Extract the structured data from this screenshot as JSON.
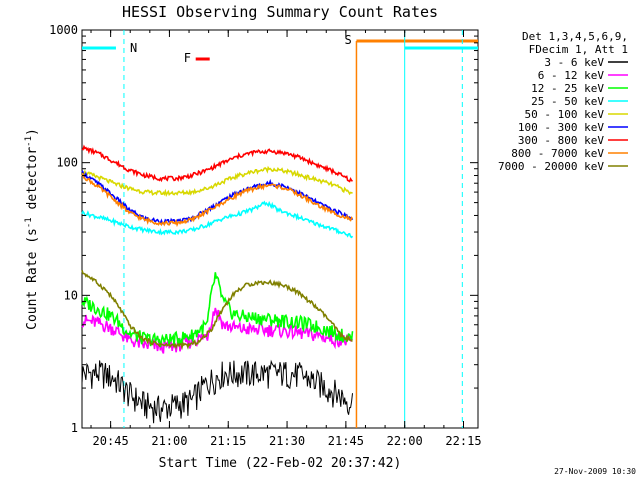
{
  "chart_data": {
    "type": "line",
    "title": "HESSI Observing Summary Count Rates",
    "xlabel": "Start Time (22-Feb-02 20:37:42)",
    "ylabel_prefix": "Count Rate (s",
    "ylabel_sup1": "-1",
    "ylabel_mid": " detector",
    "ylabel_sup2": "-1",
    "ylabel_suffix": ")",
    "y_scale": "log",
    "ylim": [
      1,
      1000
    ],
    "xlim_minutes": [
      0,
      101
    ],
    "x_ticks": [
      {
        "label": "20:45",
        "minutes": 7.3
      },
      {
        "label": "21:00",
        "minutes": 22.3
      },
      {
        "label": "21:15",
        "minutes": 37.3
      },
      {
        "label": "21:30",
        "minutes": 52.3
      },
      {
        "label": "21:45",
        "minutes": 67.3
      },
      {
        "label": "22:00",
        "minutes": 82.3
      },
      {
        "label": "22:15",
        "minutes": 97.3
      }
    ],
    "y_ticks": [
      {
        "label": "1",
        "value": 1
      },
      {
        "label": "10",
        "value": 10
      },
      {
        "label": "100",
        "value": 100
      },
      {
        "label": "1000",
        "value": 1000
      }
    ],
    "legend": {
      "position": "right",
      "header": [
        "Det 1,3,4,5,6,9,",
        "FDecim 1, Att 1"
      ]
    },
    "series": [
      {
        "name": "3 - 6 keV",
        "color": "#000000",
        "x": [
          0,
          5,
          8,
          12,
          16,
          20,
          24,
          28,
          32,
          36,
          40,
          44,
          48,
          52,
          56,
          60,
          64,
          68,
          69
        ],
        "y": [
          2.6,
          2.6,
          2.4,
          1.8,
          1.5,
          1.4,
          1.5,
          1.6,
          2.2,
          2.6,
          2.6,
          2.6,
          2.6,
          2.6,
          2.5,
          2.2,
          1.9,
          1.6,
          1.6
        ]
      },
      {
        "name": "6 - 12 keV",
        "color": "#ff00ff",
        "x": [
          0,
          4,
          8,
          12,
          16,
          20,
          24,
          28,
          32,
          34,
          36,
          40,
          44,
          48,
          52,
          56,
          60,
          64,
          68,
          69
        ],
        "y": [
          6.5,
          6.2,
          5.6,
          4.6,
          4.2,
          4.1,
          4.2,
          4.5,
          5.0,
          8.0,
          6.0,
          5.6,
          5.5,
          5.5,
          5.4,
          5.2,
          5.0,
          4.7,
          4.5,
          4.5
        ]
      },
      {
        "name": "12 - 25 keV",
        "color": "#00ff00",
        "x": [
          0,
          4,
          8,
          12,
          16,
          20,
          24,
          28,
          32,
          34,
          36,
          38,
          40,
          44,
          48,
          52,
          56,
          60,
          64,
          68,
          69
        ],
        "y": [
          9.0,
          8.0,
          6.8,
          5.2,
          4.7,
          4.6,
          4.7,
          5.0,
          6.0,
          14.0,
          9.0,
          7.5,
          7.0,
          6.8,
          6.6,
          6.4,
          6.2,
          5.8,
          5.3,
          4.8,
          4.8
        ]
      },
      {
        "name": "25 - 50 keV",
        "color": "#00ffff",
        "x": [
          0,
          4,
          8,
          12,
          16,
          20,
          24,
          28,
          32,
          36,
          40,
          44,
          47,
          50,
          54,
          58,
          62,
          66,
          69
        ],
        "y": [
          42,
          39,
          36,
          33,
          31,
          30,
          30,
          31,
          34,
          38,
          41,
          45,
          50,
          44,
          40,
          36,
          33,
          30,
          28
        ]
      },
      {
        "name": "50 - 100 keV",
        "color": "#d8d800",
        "x": [
          0,
          4,
          8,
          12,
          16,
          20,
          24,
          28,
          32,
          36,
          40,
          44,
          48,
          52,
          56,
          60,
          64,
          68,
          69
        ],
        "y": [
          85,
          78,
          70,
          64,
          60,
          59,
          59,
          60,
          64,
          72,
          80,
          86,
          90,
          86,
          80,
          74,
          68,
          60,
          58
        ]
      },
      {
        "name": "100 - 300 keV",
        "color": "#0000ff",
        "x": [
          0,
          4,
          8,
          12,
          16,
          20,
          24,
          28,
          32,
          36,
          40,
          44,
          48,
          52,
          56,
          60,
          64,
          68,
          69
        ],
        "y": [
          84,
          70,
          56,
          44,
          38,
          36,
          36,
          38,
          44,
          52,
          60,
          66,
          70,
          66,
          58,
          50,
          44,
          39,
          38
        ]
      },
      {
        "name": "300 - 800 keV",
        "color": "#ff0000",
        "x": [
          0,
          4,
          8,
          12,
          16,
          20,
          24,
          28,
          32,
          36,
          40,
          44,
          48,
          52,
          56,
          60,
          64,
          68,
          69
        ],
        "y": [
          130,
          118,
          102,
          88,
          80,
          76,
          76,
          80,
          88,
          100,
          112,
          120,
          122,
          118,
          108,
          96,
          86,
          75,
          72
        ]
      },
      {
        "name": "800 - 7000 keV",
        "color": "#ff8000",
        "x": [
          0,
          4,
          8,
          12,
          16,
          20,
          24,
          28,
          32,
          36,
          40,
          44,
          48,
          52,
          56,
          60,
          64,
          68,
          69
        ],
        "y": [
          80,
          66,
          53,
          42,
          37,
          35,
          35,
          37,
          43,
          50,
          58,
          64,
          68,
          64,
          56,
          48,
          42,
          38,
          37
        ]
      },
      {
        "name": "7000 - 20000 keV",
        "color": "#808000",
        "x": [
          0,
          3,
          6,
          9,
          12,
          15,
          18,
          21,
          24,
          27,
          30,
          33,
          36,
          39,
          42,
          45,
          48,
          51,
          54,
          57,
          60,
          63,
          66,
          69
        ],
        "y": [
          15,
          13,
          11,
          8.5,
          6,
          4.8,
          4.4,
          4.2,
          4.2,
          4.2,
          4.5,
          5.5,
          8,
          10.5,
          12,
          12.5,
          12.5,
          12,
          11,
          9.5,
          8,
          6.5,
          5,
          4.5
        ]
      }
    ],
    "annotations": [
      {
        "label": "N",
        "minutes": 10.7,
        "color": "#00ffff"
      },
      {
        "label": "F",
        "minutes": 29.0,
        "color": "#ff0000"
      },
      {
        "label": "S",
        "minutes": 70.0,
        "color": "#ff8000"
      }
    ],
    "footer": "27-Nov-2009 10:30"
  }
}
